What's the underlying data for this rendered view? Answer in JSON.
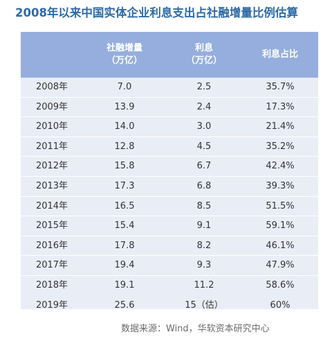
{
  "title": "2008年以来中国实体企业利息支出占社融增量比例估算",
  "source": "数据来源：Wind，华软资本研究中心",
  "colors": {
    "title": "#2e6aa6",
    "header_bg": "#95aede",
    "body_bg": "#e9edf6",
    "text": "#333333"
  },
  "chart_data": {
    "type": "table",
    "title": "2008年以来中国实体企业利息支出占社融增量比例估算",
    "columns": [
      {
        "line1": "",
        "line2": ""
      },
      {
        "line1": "社融增量",
        "line2": "（万亿）"
      },
      {
        "line1": "利息",
        "line2": "（万亿）"
      },
      {
        "line1": "利息占比",
        "line2": ""
      }
    ],
    "rows": [
      {
        "year": "2008年",
        "social_financing": "7.0",
        "interest": "2.5",
        "ratio": "35.7%"
      },
      {
        "year": "2009年",
        "social_financing": "13.9",
        "interest": "2.4",
        "ratio": "17.3%"
      },
      {
        "year": "2010年",
        "social_financing": "14.0",
        "interest": "3.0",
        "ratio": "21.4%"
      },
      {
        "year": "2011年",
        "social_financing": "12.8",
        "interest": "4.5",
        "ratio": "35.2%"
      },
      {
        "year": "2012年",
        "social_financing": "15.8",
        "interest": "6.7",
        "ratio": "42.4%"
      },
      {
        "year": "2013年",
        "social_financing": "17.3",
        "interest": "6.8",
        "ratio": "39.3%"
      },
      {
        "year": "2014年",
        "social_financing": "16.5",
        "interest": "8.5",
        "ratio": "51.5%"
      },
      {
        "year": "2015年",
        "social_financing": "15.4",
        "interest": "9.1",
        "ratio": "59.1%"
      },
      {
        "year": "2016年",
        "social_financing": "17.8",
        "interest": "8.2",
        "ratio": "46.1%"
      },
      {
        "year": "2017年",
        "social_financing": "19.4",
        "interest": "9.3",
        "ratio": "47.9%"
      },
      {
        "year": "2018年",
        "social_financing": "19.1",
        "interest": "11.2",
        "ratio": "58.6%"
      },
      {
        "year": "2019年",
        "social_financing": "25.6",
        "interest": "15（估）",
        "ratio": "60%"
      }
    ]
  }
}
